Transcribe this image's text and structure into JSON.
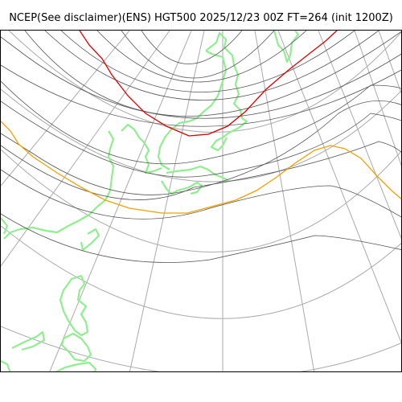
{
  "title": "NCEP(See disclaimer)(ENS) HGT500 2025/12/23 00Z FT=264 (init 1200Z)",
  "map": {
    "colors": {
      "coastline": "#90ee90",
      "graticule": "#aaaaaa",
      "contour": "#555555",
      "contour_highlight_red": "#e00000",
      "contour_highlight_orange": "#f5a000",
      "frame": "#000000",
      "background": "#ffffff"
    }
  }
}
